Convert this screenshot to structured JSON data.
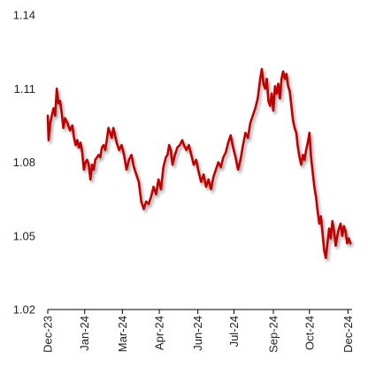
{
  "chart_data": {
    "type": "line",
    "title": "",
    "xlabel": "",
    "ylabel": "",
    "ylim": [
      1.02,
      1.14
    ],
    "xlim": [
      "2023-12-01",
      "2024-12-06"
    ],
    "y_ticks": [
      "1.02",
      "1.05",
      "1.08",
      "1.11",
      "1.14"
    ],
    "x_ticks": [
      {
        "label": "Dec-23",
        "date": "2023-12-01"
      },
      {
        "label": "Jan-24",
        "date": "2024-01-15"
      },
      {
        "label": "Mar-24",
        "date": "2024-03-01"
      },
      {
        "label": "Apr-24",
        "date": "2024-04-15"
      },
      {
        "label": "Jun-24",
        "date": "2024-06-01"
      },
      {
        "label": "Jul-24",
        "date": "2024-07-15"
      },
      {
        "label": "Sep-24",
        "date": "2024-09-01"
      },
      {
        "label": "Oct-24",
        "date": "2024-10-15"
      },
      {
        "label": "Dec-24",
        "date": "2024-12-01"
      }
    ],
    "grid": false,
    "legend": "none",
    "series": [
      {
        "color": "#C00000",
        "points": [
          [
            "2023-12-01",
            1.099
          ],
          [
            "2023-12-02",
            1.089
          ],
          [
            "2023-12-04",
            1.096
          ],
          [
            "2023-12-06",
            1.099
          ],
          [
            "2023-12-08",
            1.102
          ],
          [
            "2023-12-10",
            1.099
          ],
          [
            "2023-12-12",
            1.11
          ],
          [
            "2023-12-14",
            1.104
          ],
          [
            "2023-12-16",
            1.105
          ],
          [
            "2023-12-18",
            1.1
          ],
          [
            "2023-12-20",
            1.094
          ],
          [
            "2023-12-22",
            1.098
          ],
          [
            "2023-12-25",
            1.096
          ],
          [
            "2023-12-28",
            1.093
          ],
          [
            "2023-12-31",
            1.095
          ],
          [
            "2024-01-02",
            1.09
          ],
          [
            "2024-01-04",
            1.087
          ],
          [
            "2024-01-06",
            1.089
          ],
          [
            "2024-01-08",
            1.086
          ],
          [
            "2024-01-10",
            1.088
          ],
          [
            "2024-01-12",
            1.084
          ],
          [
            "2024-01-14",
            1.077
          ],
          [
            "2024-01-16",
            1.08
          ],
          [
            "2024-01-18",
            1.081
          ],
          [
            "2024-01-20",
            1.079
          ],
          [
            "2024-01-22",
            1.073
          ],
          [
            "2024-01-24",
            1.079
          ],
          [
            "2024-01-26",
            1.077
          ],
          [
            "2024-01-28",
            1.081
          ],
          [
            "2024-01-30",
            1.082
          ],
          [
            "2024-02-01",
            1.083
          ],
          [
            "2024-02-03",
            1.082
          ],
          [
            "2024-02-05",
            1.086
          ],
          [
            "2024-02-07",
            1.087
          ],
          [
            "2024-02-09",
            1.085
          ],
          [
            "2024-02-11",
            1.089
          ],
          [
            "2024-02-13",
            1.094
          ],
          [
            "2024-02-15",
            1.092
          ],
          [
            "2024-02-17",
            1.09
          ],
          [
            "2024-02-19",
            1.094
          ],
          [
            "2024-02-21",
            1.091
          ],
          [
            "2024-02-23",
            1.088
          ],
          [
            "2024-02-26",
            1.085
          ],
          [
            "2024-02-29",
            1.087
          ],
          [
            "2024-03-03",
            1.083
          ],
          [
            "2024-03-06",
            1.077
          ],
          [
            "2024-03-09",
            1.081
          ],
          [
            "2024-03-12",
            1.083
          ],
          [
            "2024-03-15",
            1.078
          ],
          [
            "2024-03-18",
            1.075
          ],
          [
            "2024-03-21",
            1.072
          ],
          [
            "2024-03-24",
            1.064
          ],
          [
            "2024-03-27",
            1.061
          ],
          [
            "2024-03-30",
            1.064
          ],
          [
            "2024-04-02",
            1.063
          ],
          [
            "2024-04-05",
            1.066
          ],
          [
            "2024-04-08",
            1.07
          ],
          [
            "2024-04-11",
            1.067
          ],
          [
            "2024-04-14",
            1.073
          ],
          [
            "2024-04-17",
            1.069
          ],
          [
            "2024-04-20",
            1.078
          ],
          [
            "2024-04-23",
            1.082
          ],
          [
            "2024-04-25",
            1.083
          ],
          [
            "2024-04-27",
            1.087
          ],
          [
            "2024-04-29",
            1.085
          ],
          [
            "2024-05-01",
            1.079
          ],
          [
            "2024-05-04",
            1.083
          ],
          [
            "2024-05-07",
            1.086
          ],
          [
            "2024-05-10",
            1.087
          ],
          [
            "2024-05-13",
            1.089
          ],
          [
            "2024-05-15",
            1.087
          ],
          [
            "2024-05-18",
            1.085
          ],
          [
            "2024-05-21",
            1.087
          ],
          [
            "2024-05-24",
            1.083
          ],
          [
            "2024-05-27",
            1.079
          ],
          [
            "2024-05-30",
            1.081
          ],
          [
            "2024-06-02",
            1.076
          ],
          [
            "2024-06-05",
            1.072
          ],
          [
            "2024-06-08",
            1.075
          ],
          [
            "2024-06-11",
            1.07
          ],
          [
            "2024-06-14",
            1.073
          ],
          [
            "2024-06-17",
            1.069
          ],
          [
            "2024-06-20",
            1.074
          ],
          [
            "2024-06-23",
            1.077
          ],
          [
            "2024-06-26",
            1.08
          ],
          [
            "2024-06-29",
            1.078
          ],
          [
            "2024-07-02",
            1.082
          ],
          [
            "2024-07-05",
            1.084
          ],
          [
            "2024-07-08",
            1.088
          ],
          [
            "2024-07-11",
            1.091
          ],
          [
            "2024-07-14",
            1.086
          ],
          [
            "2024-07-17",
            1.082
          ],
          [
            "2024-07-20",
            1.077
          ],
          [
            "2024-07-23",
            1.081
          ],
          [
            "2024-07-26",
            1.087
          ],
          [
            "2024-07-29",
            1.092
          ],
          [
            "2024-08-01",
            1.09
          ],
          [
            "2024-08-04",
            1.096
          ],
          [
            "2024-08-07",
            1.099
          ],
          [
            "2024-08-10",
            1.102
          ],
          [
            "2024-08-13",
            1.106
          ],
          [
            "2024-08-16",
            1.114
          ],
          [
            "2024-08-18",
            1.118
          ],
          [
            "2024-08-20",
            1.112
          ],
          [
            "2024-08-22",
            1.11
          ],
          [
            "2024-08-24",
            1.114
          ],
          [
            "2024-08-26",
            1.105
          ],
          [
            "2024-08-28",
            1.103
          ],
          [
            "2024-08-30",
            1.108
          ],
          [
            "2024-09-01",
            1.101
          ],
          [
            "2024-09-03",
            1.111
          ],
          [
            "2024-09-05",
            1.108
          ],
          [
            "2024-09-07",
            1.112
          ],
          [
            "2024-09-09",
            1.106
          ],
          [
            "2024-09-11",
            1.114
          ],
          [
            "2024-09-13",
            1.117
          ],
          [
            "2024-09-15",
            1.114
          ],
          [
            "2024-09-17",
            1.116
          ],
          [
            "2024-09-19",
            1.111
          ],
          [
            "2024-09-21",
            1.109
          ],
          [
            "2024-09-23",
            1.103
          ],
          [
            "2024-09-25",
            1.097
          ],
          [
            "2024-09-27",
            1.094
          ],
          [
            "2024-09-29",
            1.092
          ],
          [
            "2024-10-01",
            1.086
          ],
          [
            "2024-10-03",
            1.082
          ],
          [
            "2024-10-05",
            1.079
          ],
          [
            "2024-10-07",
            1.083
          ],
          [
            "2024-10-09",
            1.081
          ],
          [
            "2024-10-11",
            1.085
          ],
          [
            "2024-10-13",
            1.088
          ],
          [
            "2024-10-15",
            1.092
          ],
          [
            "2024-10-17",
            1.082
          ],
          [
            "2024-10-19",
            1.076
          ],
          [
            "2024-10-21",
            1.07
          ],
          [
            "2024-10-23",
            1.066
          ],
          [
            "2024-10-25",
            1.06
          ],
          [
            "2024-10-27",
            1.055
          ],
          [
            "2024-10-29",
            1.058
          ],
          [
            "2024-10-31",
            1.051
          ],
          [
            "2024-11-02",
            1.044
          ],
          [
            "2024-11-04",
            1.041
          ],
          [
            "2024-11-06",
            1.047
          ],
          [
            "2024-11-08",
            1.053
          ],
          [
            "2024-11-10",
            1.049
          ],
          [
            "2024-11-12",
            1.056
          ],
          [
            "2024-11-14",
            1.052
          ],
          [
            "2024-11-16",
            1.046
          ],
          [
            "2024-11-18",
            1.05
          ],
          [
            "2024-11-20",
            1.053
          ],
          [
            "2024-11-22",
            1.055
          ],
          [
            "2024-11-24",
            1.05
          ],
          [
            "2024-11-26",
            1.054
          ],
          [
            "2024-11-28",
            1.052
          ],
          [
            "2024-11-30",
            1.047
          ],
          [
            "2024-12-02",
            1.049
          ],
          [
            "2024-12-04",
            1.047
          ]
        ]
      }
    ]
  }
}
